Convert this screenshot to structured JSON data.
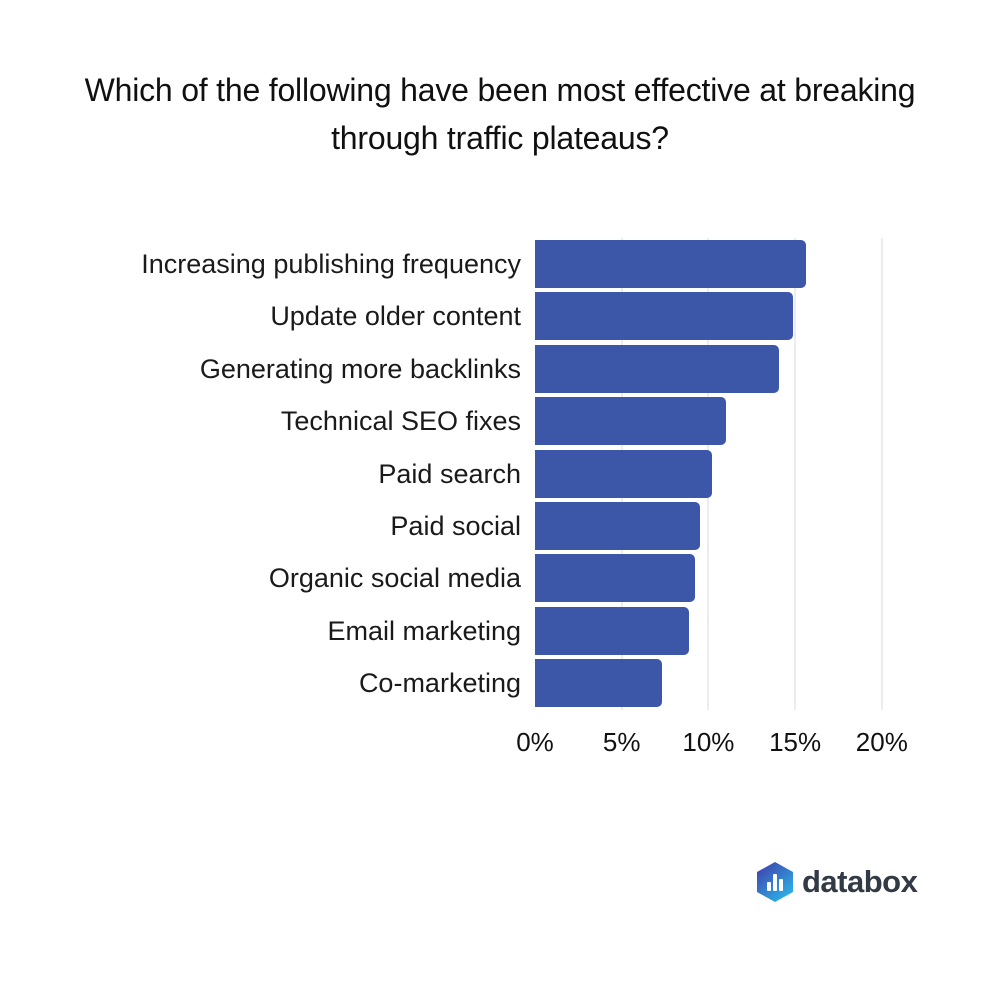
{
  "title": {
    "line1": "Which of the following have been most effective at breaking",
    "line2": "through traffic plateaus?"
  },
  "chart_data": {
    "type": "bar",
    "orientation": "horizontal",
    "title": "Which of the following have been most effective at breaking through traffic plateaus?",
    "categories": [
      "Increasing publishing frequency",
      "Update older content",
      "Generating more backlinks",
      "Technical SEO fixes",
      "Paid search",
      "Paid social",
      "Organic social media",
      "Email marketing",
      "Co-marketing"
    ],
    "values": [
      15.6,
      14.9,
      14.1,
      11.0,
      10.2,
      9.5,
      9.2,
      8.9,
      7.3
    ],
    "unit": "%",
    "xlabel": "",
    "ylabel": "",
    "xlim": [
      0,
      20
    ],
    "xtick_values": [
      0,
      5,
      10,
      15,
      20
    ],
    "xtick_labels": [
      "0%",
      "5%",
      "10%",
      "15%",
      "20%"
    ],
    "grid": true,
    "legend": false,
    "bar_color": "#3C57A8",
    "gridline_color": "#ECECEC",
    "label_color": "#1A1A1A",
    "tick_color": "#111111"
  },
  "branding": {
    "logo_text": "databox",
    "logo_icon": "databox-hexagon-bars-icon",
    "text_color": "#323A46",
    "hex_gradient_start": "#3D4DB2",
    "hex_gradient_end": "#2BB5E9"
  }
}
